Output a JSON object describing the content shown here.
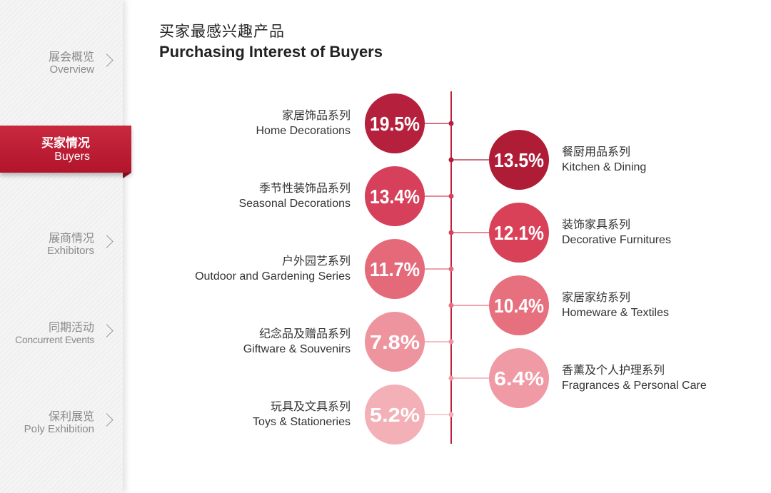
{
  "sidebar": {
    "items": [
      {
        "zh": "展会概览",
        "en": "Overview",
        "active": false
      },
      {
        "zh": "买家情况",
        "en": "Buyers",
        "active": true
      },
      {
        "zh": "展商情况",
        "en": "Exhibitors",
        "active": false
      },
      {
        "zh": "同期活动",
        "en": "Concurrent Events",
        "active": false
      },
      {
        "zh": "保利展览",
        "en": "Poly Exhibition",
        "active": false
      }
    ]
  },
  "header": {
    "title_zh": "买家最感兴趣产品",
    "title_en": "Purchasing Interest of Buyers"
  },
  "chart_data": {
    "type": "bubble",
    "title": "买家最感兴趣产品 / Purchasing Interest of Buyers",
    "unit": "%",
    "categories": [
      {
        "zh": "家居饰品系列",
        "en": "Home Decorations",
        "value": 19.5,
        "label": "19.5%",
        "side": "left",
        "color": "#b5203c"
      },
      {
        "zh": "餐厨用品系列",
        "en": "Kitchen & Dining",
        "value": 13.5,
        "label": "13.5%",
        "side": "right",
        "color": "#ae1c36"
      },
      {
        "zh": "季节性装饰品系列",
        "en": "Seasonal Decorations",
        "value": 13.4,
        "label": "13.4%",
        "side": "left",
        "color": "#d6405a"
      },
      {
        "zh": "装饰家具系列",
        "en": "Decorative Furnitures",
        "value": 12.1,
        "label": "12.1%",
        "side": "right",
        "color": "#d84158"
      },
      {
        "zh": "户外园艺系列",
        "en": "Outdoor and Gardening Series",
        "value": 11.7,
        "label": "11.7%",
        "side": "left",
        "color": "#e46a7a"
      },
      {
        "zh": "家居家纺系列",
        "en": "Homeware & Textiles",
        "value": 10.4,
        "label": "10.4%",
        "side": "right",
        "color": "#e7707f"
      },
      {
        "zh": "纪念品及赠品系列",
        "en": "Giftware & Souvenirs",
        "value": 7.8,
        "label": "7.8%",
        "side": "left",
        "color": "#ee949f"
      },
      {
        "zh": "香薰及个人护理系列",
        "en": "Fragrances & Personal Care",
        "value": 6.4,
        "label": "6.4%",
        "side": "right",
        "color": "#ef9aa4"
      },
      {
        "zh": "玩具及文具系列",
        "en": "Toys & Stationeries",
        "value": 5.2,
        "label": "5.2%",
        "side": "left",
        "color": "#f3b0b7"
      }
    ],
    "axis_color": "#c0223d"
  }
}
